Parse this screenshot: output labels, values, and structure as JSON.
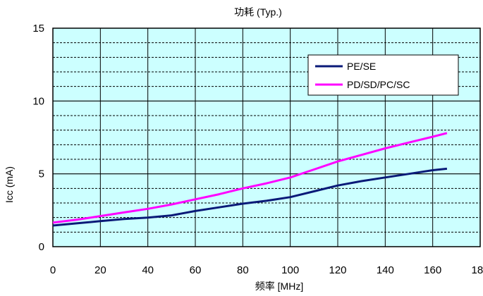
{
  "chart_data": {
    "type": "line",
    "title": "功耗 (Typ.)",
    "xlabel": "频率 [MHz]",
    "ylabel": "Icc (mA)",
    "xlim": [
      0,
      180
    ],
    "ylim": [
      0,
      15
    ],
    "x_ticks": [
      "0",
      "20",
      "40",
      "60",
      "80",
      "100",
      "120",
      "140",
      "160",
      "180"
    ],
    "y_ticks": [
      "0",
      "5",
      "10",
      "15"
    ],
    "x_tick_values": [
      0,
      20,
      40,
      60,
      80,
      100,
      120,
      140,
      160,
      180
    ],
    "y_tick_values": [
      0,
      5,
      10,
      15
    ],
    "grid": true,
    "legend_position": "top-right",
    "series": [
      {
        "name": "PE/SE",
        "color": "#0a1a78",
        "x": [
          0,
          10,
          20,
          30,
          40,
          50,
          60,
          70,
          80,
          90,
          100,
          110,
          120,
          130,
          140,
          150,
          160,
          166
        ],
        "values": [
          1.45,
          1.6,
          1.75,
          1.9,
          2.0,
          2.15,
          2.45,
          2.7,
          2.95,
          3.15,
          3.4,
          3.8,
          4.2,
          4.5,
          4.75,
          5.0,
          5.25,
          5.35
        ]
      },
      {
        "name": "PD/SD/PC/SC",
        "color": "#ff00ff",
        "x": [
          0,
          10,
          20,
          30,
          40,
          50,
          60,
          70,
          80,
          90,
          100,
          110,
          120,
          130,
          140,
          150,
          160,
          166
        ],
        "values": [
          1.65,
          1.85,
          2.1,
          2.35,
          2.6,
          2.9,
          3.25,
          3.6,
          4.0,
          4.35,
          4.75,
          5.3,
          5.85,
          6.3,
          6.75,
          7.15,
          7.55,
          7.8
        ]
      }
    ],
    "colors": {
      "plot_background": "#ccffff",
      "grid": "#000000",
      "axis": "#000000"
    }
  }
}
